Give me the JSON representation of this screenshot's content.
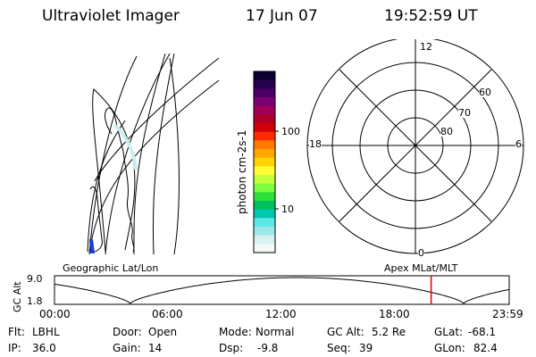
{
  "header": {
    "title": "Ultraviolet Imager",
    "date": "17 Jun 07",
    "time": "19:52:59 UT"
  },
  "left_panel": {
    "caption": "Geographic Lat/Lon"
  },
  "colorbar": {
    "unit_label": "photon cm-2s-1",
    "ticks": [
      "100",
      "10"
    ],
    "colors": [
      "#0b0030",
      "#27004f",
      "#4a0066",
      "#7a0070",
      "#9e0057",
      "#b0002a",
      "#d0000a",
      "#ff2a00",
      "#ff7a00",
      "#ffa800",
      "#ffd400",
      "#ffff33",
      "#c8ff3c",
      "#7cff3c",
      "#2ee03a",
      "#00c060",
      "#00c8b0",
      "#5fe8e8",
      "#9fe8e8",
      "#d8f0f0",
      "#f4f8f8"
    ]
  },
  "polar": {
    "caption": "Apex MLat/MLT",
    "hour_labels": [
      "12",
      "18",
      "6",
      "0"
    ],
    "lat_labels": [
      "60",
      "70",
      "80"
    ]
  },
  "timeline": {
    "ylabel": "GC Alt",
    "y_ticks": [
      "9.0",
      "1.8"
    ],
    "x_ticks": [
      "00:00",
      "06:00",
      "12:00",
      "18:00",
      "23:59"
    ],
    "marker_time_hours": 19.88
  },
  "status": [
    [
      {
        "label": "Flt:",
        "value": "LBHL"
      },
      {
        "label": "Door:",
        "value": "Open"
      },
      {
        "label": "Mode:",
        "value": "Normal"
      },
      {
        "label": "GC Alt:",
        "value": "5.2 Re"
      },
      {
        "label": "GLat:",
        "value": "-68.1"
      }
    ],
    [
      {
        "label": "IP:",
        "value": "36.0"
      },
      {
        "label": "Gain:",
        "value": "14"
      },
      {
        "label": "Dsp:",
        "value": "-9.8"
      },
      {
        "label": "Seq:",
        "value": "39"
      },
      {
        "label": "GLon:",
        "value": "82.4"
      }
    ]
  ],
  "colors": {
    "marker": "#e00000",
    "foreground": "#000000",
    "background": "#ffffff"
  }
}
